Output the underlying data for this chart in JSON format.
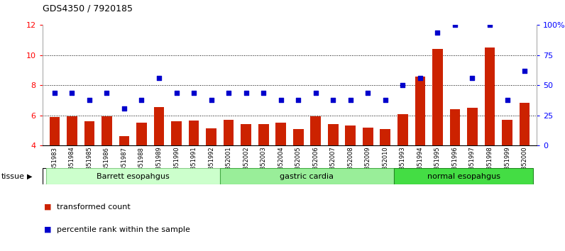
{
  "title": "GDS4350 / 7920185",
  "samples": [
    "GSM851983",
    "GSM851984",
    "GSM851985",
    "GSM851986",
    "GSM851987",
    "GSM851988",
    "GSM851989",
    "GSM851990",
    "GSM851991",
    "GSM851992",
    "GSM852001",
    "GSM852002",
    "GSM852003",
    "GSM852004",
    "GSM852005",
    "GSM852006",
    "GSM852007",
    "GSM852008",
    "GSM852009",
    "GSM852010",
    "GSM851993",
    "GSM851994",
    "GSM851995",
    "GSM851996",
    "GSM851997",
    "GSM851998",
    "GSM851999",
    "GSM852000"
  ],
  "bar_values": [
    5.9,
    5.95,
    5.6,
    5.95,
    4.65,
    5.5,
    6.55,
    5.6,
    5.65,
    5.15,
    5.7,
    5.45,
    5.45,
    5.5,
    5.1,
    5.95,
    5.45,
    5.35,
    5.2,
    5.1,
    6.1,
    8.6,
    10.4,
    6.4,
    6.5,
    10.5,
    5.7,
    6.85
  ],
  "dot_values_pct": [
    44,
    44,
    38,
    44,
    31,
    38,
    56,
    44,
    44,
    38,
    44,
    44,
    44,
    38,
    38,
    44,
    38,
    38,
    44,
    38,
    50,
    56,
    94,
    100,
    56,
    100,
    38,
    62
  ],
  "groups": [
    {
      "label": "Barrett esopahgus",
      "start": 0,
      "end": 9,
      "color": "#ccffcc"
    },
    {
      "label": "gastric cardia",
      "start": 10,
      "end": 19,
      "color": "#99ee99"
    },
    {
      "label": "normal esopahgus",
      "start": 20,
      "end": 27,
      "color": "#44dd44"
    }
  ],
  "ylim_left": [
    4,
    12
  ],
  "ylim_right": [
    0,
    100
  ],
  "yticks_left": [
    4,
    6,
    8,
    10,
    12
  ],
  "yticks_right": [
    0,
    25,
    50,
    75,
    100
  ],
  "bar_color": "#cc2200",
  "dot_color": "#0000cc",
  "grid_color": "#000000",
  "bg_color": "#ffffff",
  "legend_items": [
    "transformed count",
    "percentile rank within the sample"
  ],
  "group_colors": [
    "#ccffcc",
    "#99ee99",
    "#44dd44"
  ],
  "group_edge_colors": [
    "#88cc88",
    "#44aa44",
    "#228822"
  ]
}
